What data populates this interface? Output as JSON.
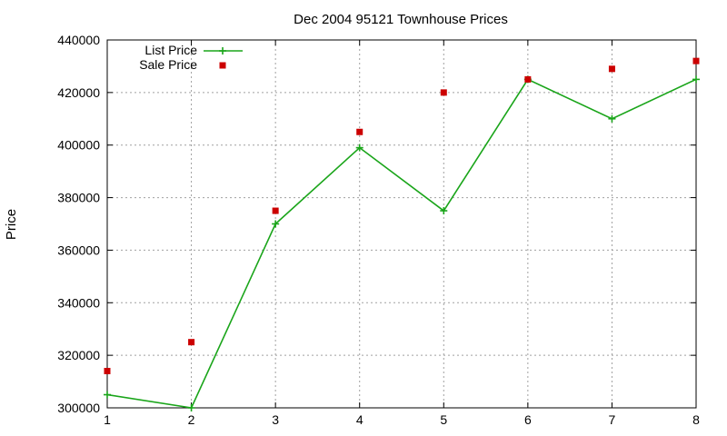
{
  "chart_data": {
    "type": "line",
    "title": "Dec 2004 95121 Townhouse Prices",
    "xlabel": "",
    "ylabel": "Price",
    "x": [
      1,
      2,
      3,
      4,
      5,
      6,
      7,
      8
    ],
    "xlim": [
      1,
      8
    ],
    "ylim": [
      300000,
      440000
    ],
    "yticks": [
      300000,
      320000,
      340000,
      360000,
      380000,
      400000,
      420000,
      440000
    ],
    "xticks": [
      1,
      2,
      3,
      4,
      5,
      6,
      7,
      8
    ],
    "grid": true,
    "legend_position": "top-left",
    "series": [
      {
        "name": "List Price",
        "style": "lines+points",
        "marker": "plus",
        "color": "#1aa51a",
        "values": [
          305000,
          300000,
          370000,
          399000,
          375000,
          425000,
          410000,
          425000
        ]
      },
      {
        "name": "Sale Price",
        "style": "points",
        "marker": "square",
        "color": "#cc0000",
        "values": [
          314000,
          325000,
          375000,
          405000,
          420000,
          425000,
          429000,
          432000
        ]
      }
    ]
  }
}
